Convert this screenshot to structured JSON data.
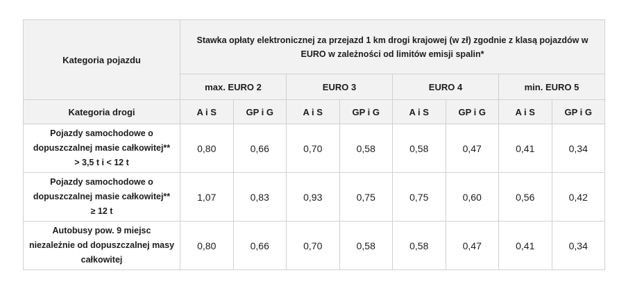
{
  "chart_data": {
    "type": "table",
    "corner_header": "Kategoria pojazdu",
    "main_header": "Stawka opłaty elektronicznej za przejazd 1 km drogi krajowej (w zł) zgodnie z klasą pojazdów w\nEURO w zależności od limitów emisji spalin*",
    "euro_groups": [
      "max. EURO 2",
      "EURO 3",
      "EURO 4",
      "min. EURO 5"
    ],
    "road_category_header": "Kategoria drogi",
    "road_categories": [
      "A i S",
      "GP i G",
      "A i S",
      "GP i G",
      "A i S",
      "GP i G",
      "A i S",
      "GP i G"
    ],
    "rows": [
      {
        "label": "Pojazdy samochodowe o\ndopuszczalnej masie całkowitej**\n> 3,5 t i < 12 t",
        "values": [
          "0,80",
          "0,66",
          "0,70",
          "0,58",
          "0,58",
          "0,47",
          "0,41",
          "0,34"
        ]
      },
      {
        "label": "Pojazdy samochodowe o\ndopuszczalnej masie całkowitej**\n≥ 12 t",
        "values": [
          "1,07",
          "0,83",
          "0,93",
          "0,75",
          "0,75",
          "0,60",
          "0,56",
          "0,42"
        ]
      },
      {
        "label": "Autobusy pow. 9 miejsc\nniezależnie od dopuszczalnej masy\ncałkowitej",
        "values": [
          "0,80",
          "0,66",
          "0,70",
          "0,58",
          "0,58",
          "0,47",
          "0,41",
          "0,34"
        ]
      }
    ],
    "layout_hints": {
      "unit": "zł per 1 km",
      "decimal_separator": ",",
      "header_bg": "#f2f2f2",
      "border_color": "#d0d0d0",
      "body_bg": "#ffffff",
      "text_color": "#1c1c1c"
    }
  }
}
